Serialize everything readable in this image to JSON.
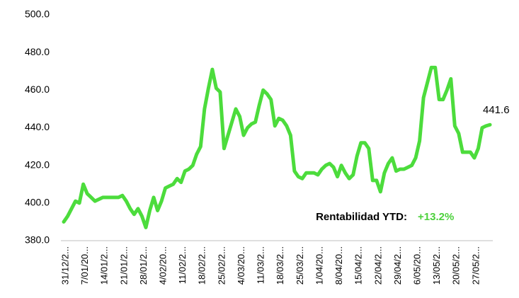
{
  "chart_data": {
    "type": "line",
    "categories": [
      "31/12/2...",
      null,
      null,
      null,
      null,
      "7/01/20...",
      null,
      null,
      null,
      null,
      "14/01/2...",
      null,
      null,
      null,
      null,
      "21/01/2...",
      null,
      null,
      null,
      null,
      "28/01/2...",
      null,
      null,
      null,
      null,
      "4/02/20...",
      null,
      null,
      null,
      null,
      "11/02/2...",
      null,
      null,
      null,
      null,
      "18/02/2...",
      null,
      null,
      null,
      null,
      "25/02/2...",
      null,
      null,
      null,
      null,
      "4/03/20...",
      null,
      null,
      null,
      null,
      "11/03/2...",
      null,
      null,
      null,
      null,
      "18/03/2...",
      null,
      null,
      null,
      null,
      "25/03/2...",
      null,
      null,
      null,
      null,
      "1/04/20...",
      null,
      null,
      null,
      null,
      "8/04/20...",
      null,
      null,
      null,
      null,
      "15/04/2...",
      null,
      null,
      null,
      null,
      "22/04/2...",
      null,
      null,
      null,
      null,
      "29/04/2...",
      null,
      null,
      null,
      null,
      "6/05/20...",
      null,
      null,
      null,
      null,
      "13/05/2...",
      null,
      null,
      null,
      null,
      "20/05/2...",
      null,
      null,
      null,
      null,
      "27/05/2...",
      null,
      null,
      null,
      null
    ],
    "series": [
      {
        "name": null,
        "color": "#4cdc3c",
        "values": [
          390,
          393,
          397,
          401,
          400,
          410,
          405,
          403,
          401,
          402,
          403,
          403,
          403,
          403,
          403,
          404,
          401,
          397,
          394,
          397,
          393,
          387,
          396,
          403,
          396,
          401,
          408,
          409,
          410,
          413,
          411,
          417,
          418,
          420,
          426,
          430,
          450,
          461,
          471,
          461,
          459,
          429,
          436,
          443,
          450,
          446,
          436,
          440,
          442,
          443,
          452,
          460,
          458,
          455,
          441,
          445,
          444,
          441,
          436,
          417,
          414,
          413,
          416,
          416,
          416,
          415,
          418,
          420,
          421,
          419,
          414,
          420,
          416,
          413,
          415,
          425,
          432,
          432,
          429,
          412,
          412,
          406,
          416,
          421,
          424,
          417,
          418,
          418,
          419,
          420,
          424,
          433,
          456,
          464,
          472,
          472,
          455,
          455,
          460,
          466,
          441,
          437,
          427,
          427,
          427,
          424,
          429,
          440,
          441,
          441.6
        ]
      }
    ],
    "ylim": [
      380,
      500
    ],
    "yticks": [
      {
        "value": 380,
        "label": "380.0"
      },
      {
        "value": 400,
        "label": "400.0"
      },
      {
        "value": 420,
        "label": "420.0"
      },
      {
        "value": 440,
        "label": "440.0"
      },
      {
        "value": 460,
        "label": "460.0"
      },
      {
        "value": 480,
        "label": "480.0"
      },
      {
        "value": 500,
        "label": "500.0"
      }
    ],
    "grid": false,
    "annotation": {
      "label": "Rentabilidad YTD:",
      "value": "+13.2%",
      "color": "#4cd13c"
    }
  }
}
